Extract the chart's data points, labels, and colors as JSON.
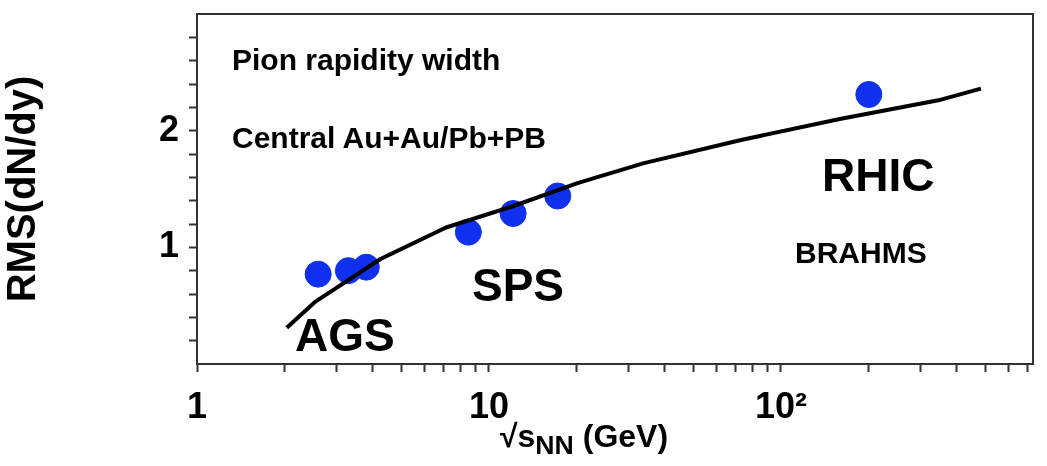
{
  "chart_data": {
    "type": "scatter",
    "xlabel": "√s$_{NN}$ (GeV)",
    "ylabel": "RMS(dN/dy)",
    "annotations": [
      "Pion rapidity width",
      "Central Au+Au/Pb+PB",
      "AGS",
      "SPS",
      "RHIC",
      "BRAHMS"
    ],
    "log": "x",
    "grid": false,
    "legend": false,
    "xlim": [
      1,
      730
    ],
    "ylim": [
      0,
      3
    ],
    "xticks": [
      {
        "value": 1,
        "label": "1"
      },
      {
        "value": 2,
        "label": null
      },
      {
        "value": 3,
        "label": null
      },
      {
        "value": 4,
        "label": null
      },
      {
        "value": 5,
        "label": null
      },
      {
        "value": 6,
        "label": null
      },
      {
        "value": 7,
        "label": null
      },
      {
        "value": 8,
        "label": null
      },
      {
        "value": 9,
        "label": null
      },
      {
        "value": 10,
        "label": "10"
      },
      {
        "value": 20,
        "label": null
      },
      {
        "value": 30,
        "label": null
      },
      {
        "value": 40,
        "label": null
      },
      {
        "value": 50,
        "label": null
      },
      {
        "value": 60,
        "label": null
      },
      {
        "value": 70,
        "label": null
      },
      {
        "value": 80,
        "label": null
      },
      {
        "value": 90,
        "label": null
      },
      {
        "value": 100,
        "label": "10²"
      },
      {
        "value": 200,
        "label": null
      },
      {
        "value": 300,
        "label": null
      },
      {
        "value": 400,
        "label": null
      },
      {
        "value": 500,
        "label": null
      },
      {
        "value": 600,
        "label": null
      },
      {
        "value": 700,
        "label": null
      }
    ],
    "yticks": [
      {
        "value": 0.2,
        "label": null
      },
      {
        "value": 0.4,
        "label": null
      },
      {
        "value": 0.6,
        "label": null
      },
      {
        "value": 0.8,
        "label": null
      },
      {
        "value": 1,
        "label": "1"
      },
      {
        "value": 1.2,
        "label": null
      },
      {
        "value": 1.4,
        "label": null
      },
      {
        "value": 1.6,
        "label": null
      },
      {
        "value": 1.8,
        "label": null
      },
      {
        "value": 2,
        "label": "2"
      },
      {
        "value": 2.2,
        "label": null
      },
      {
        "value": 2.4,
        "label": null
      },
      {
        "value": 2.6,
        "label": null
      },
      {
        "value": 2.8,
        "label": null
      }
    ],
    "series": [
      {
        "color": "#1030f0",
        "marker": "circle",
        "x": [
          2.6,
          3.3,
          3.8,
          8.5,
          12.1,
          17.2,
          200
        ],
        "values": [
          0.77,
          0.8,
          0.83,
          1.13,
          1.29,
          1.44,
          2.31
        ]
      },
      {
        "type": "line",
        "color": "#000000",
        "marker": "none",
        "line_style": "solid",
        "x": [
          2.03,
          2.53,
          4.25,
          7.13,
          12,
          20.1,
          33.7,
          73,
          159,
          346,
          484
        ],
        "values": [
          0.31,
          0.53,
          0.9,
          1.17,
          1.35,
          1.55,
          1.72,
          1.92,
          2.1,
          2.26,
          2.36
        ]
      }
    ]
  }
}
